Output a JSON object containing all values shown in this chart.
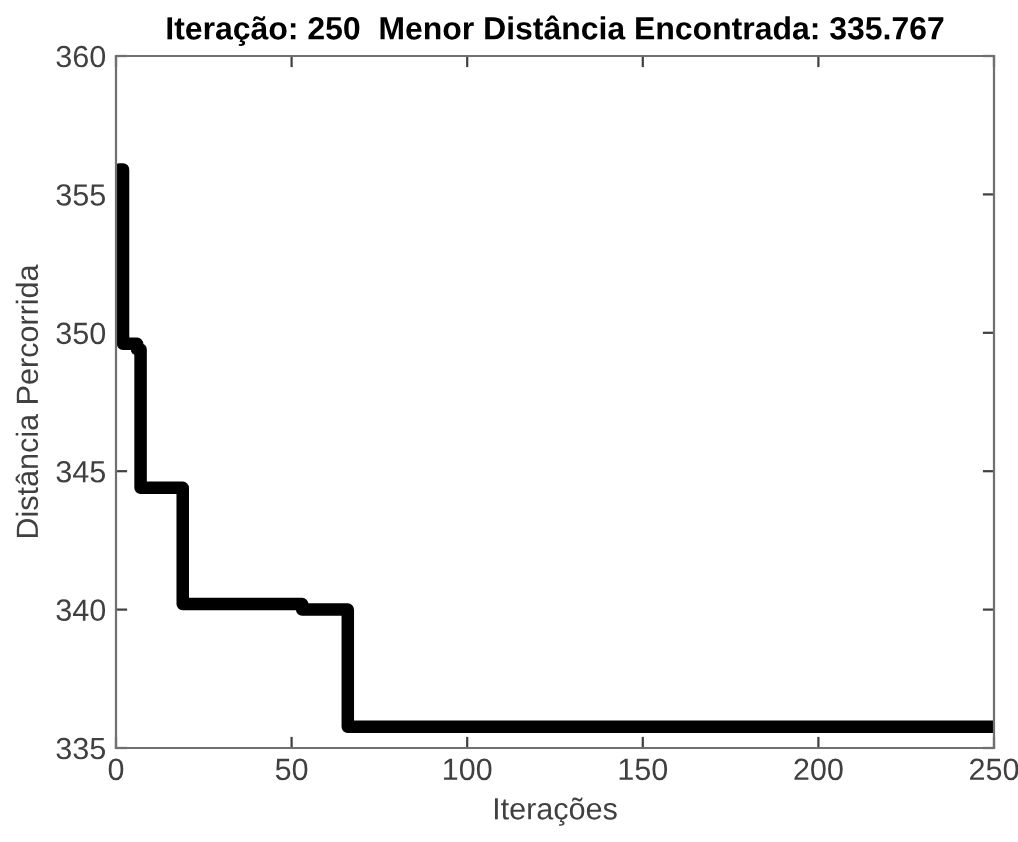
{
  "chart_data": {
    "type": "step",
    "title": "Iteração: 250  Menor Distância Encontrada: 335.767",
    "xlabel": "Iterações",
    "ylabel": "Distância Percorrida",
    "series": [
      {
        "color": "#000000",
        "x": [
          1,
          2,
          6,
          7,
          19,
          53,
          66,
          250
        ],
        "values": [
          355.9,
          349.6,
          349.4,
          344.4,
          340.2,
          340.0,
          335.767,
          335.767
        ]
      }
    ],
    "xlim": [
      0,
      250
    ],
    "ylim": [
      335,
      360
    ],
    "xticks": [
      0,
      50,
      100,
      150,
      200,
      250
    ],
    "yticks": [
      335,
      340,
      345,
      350,
      355,
      360
    ],
    "grid": false,
    "legend": false,
    "marker": "none",
    "line_style": "solid"
  }
}
